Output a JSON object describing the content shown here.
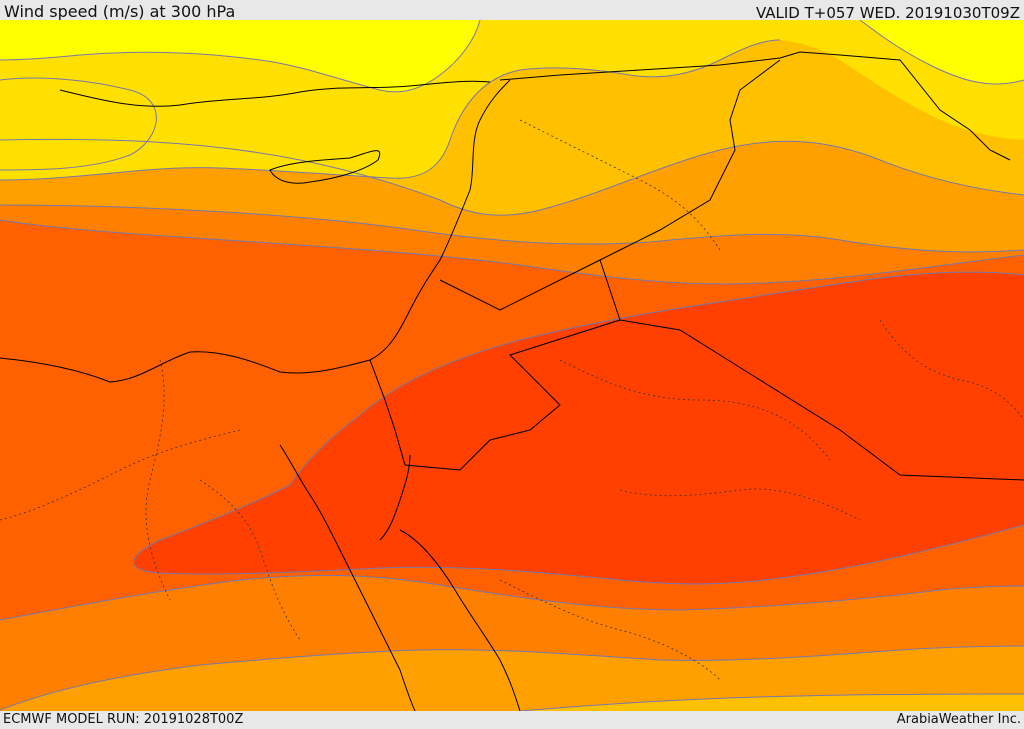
{
  "header": {
    "title": "Wind speed (m/s) at 300 hPa",
    "valid": "VALID T+057 WED. 20191030T09Z"
  },
  "footer": {
    "model_run": "ECMWF MODEL RUN: 20191028T00Z",
    "credit": "ArabiaWeather Inc."
  },
  "map": {
    "field": "wind-speed-300hpa",
    "colors": {
      "band_yellow": "#ffff00",
      "band_gold": "#ffe000",
      "band_amber": "#ffc000",
      "band_orange_light": "#ffa000",
      "band_orange": "#ff8000",
      "band_orange_dark": "#ff6000",
      "band_red_orange": "#ff4000",
      "contour": "#7777aa",
      "border": "#000000"
    }
  }
}
